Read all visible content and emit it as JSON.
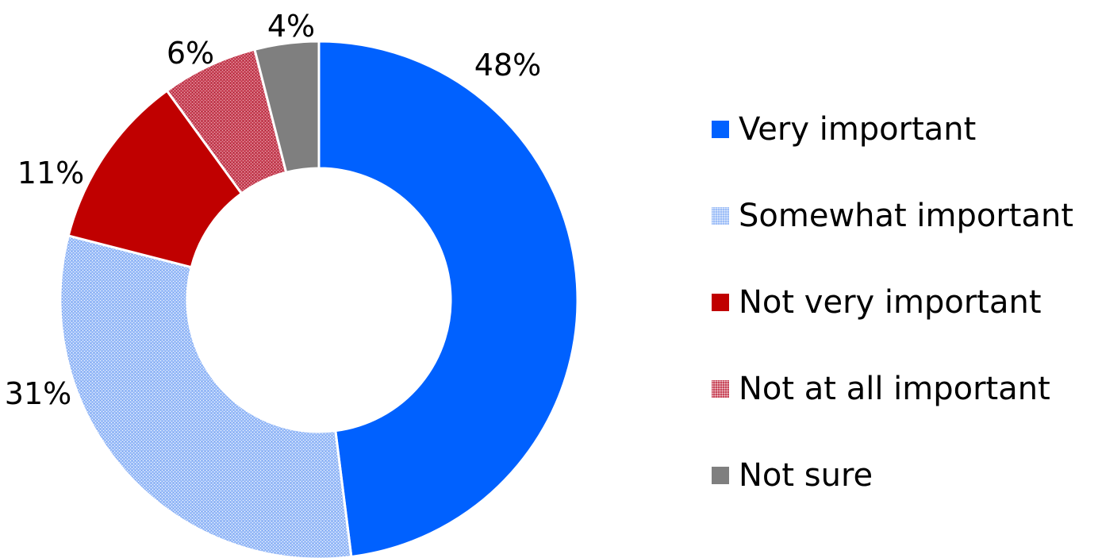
{
  "chart_data": {
    "type": "pie",
    "title": "",
    "categories": [
      "Very important",
      "Somewhat important",
      "Not very important",
      "Not at all important",
      "Not sure"
    ],
    "values": [
      48,
      31,
      11,
      6,
      4
    ],
    "labels": [
      "48%",
      "31%",
      "11%",
      "6%",
      "4%"
    ],
    "unit": "%",
    "donut": true,
    "colors": [
      "#0061FF",
      "#9DBEF8",
      "#C00000",
      "#C9475A",
      "#7F7F7F"
    ],
    "fill_styles": [
      "solid",
      "pattern",
      "solid",
      "pattern",
      "solid"
    ],
    "legend_position": "right"
  }
}
